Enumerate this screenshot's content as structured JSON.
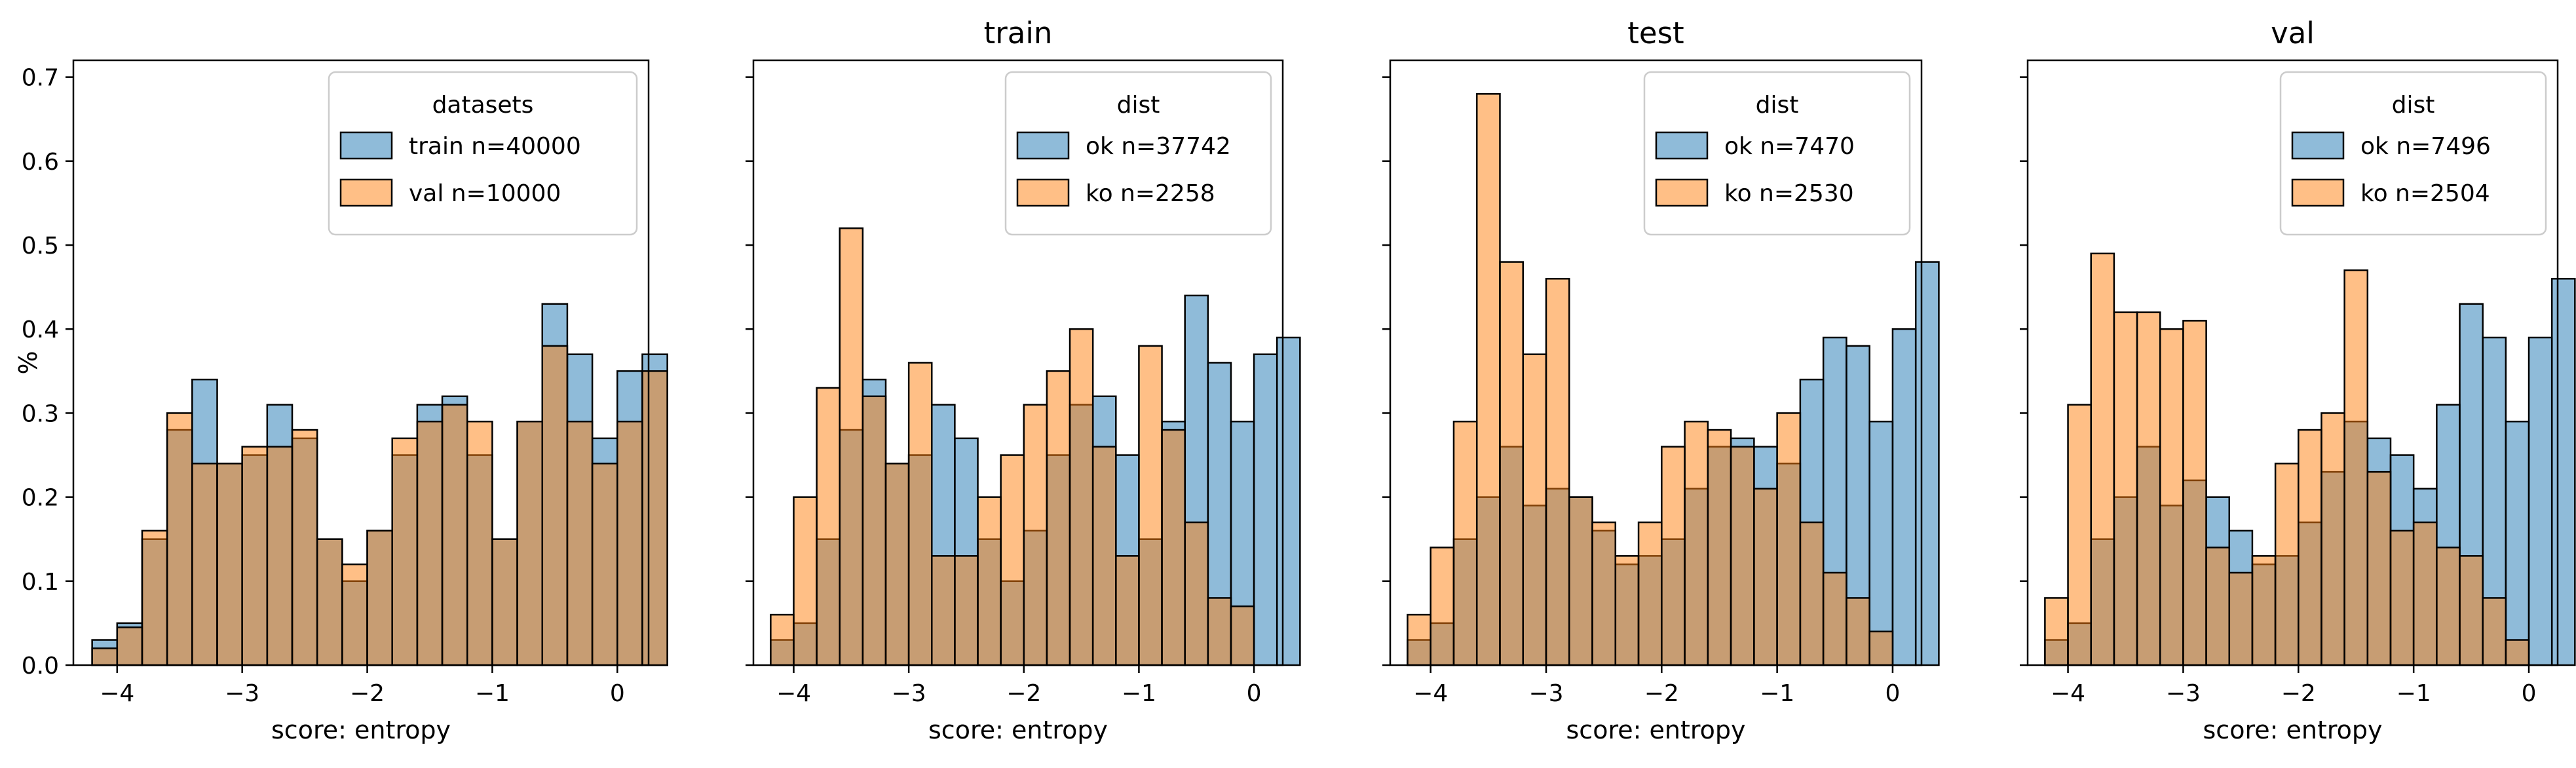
{
  "figure": {
    "ylabel": "%",
    "colors": {
      "blue": "#1f77b4",
      "orange": "#ff7f0e"
    }
  },
  "chart_data": [
    {
      "type": "histogram",
      "title": "",
      "xlabel": "score: entropy",
      "ylabel": "%",
      "xlim": [
        -4.35,
        0.25
      ],
      "ylim": [
        0,
        0.72
      ],
      "xticks": [
        "−4",
        "−3",
        "−2",
        "−1",
        "0"
      ],
      "yticks": [
        "0.0",
        "0.1",
        "0.2",
        "0.3",
        "0.4",
        "0.5",
        "0.6",
        "0.7"
      ],
      "legend": {
        "title": "datasets",
        "placement": "top-right"
      },
      "series": [
        {
          "name": "train n=40000",
          "color": "blue",
          "bin_start": -4.2,
          "bin_width": 0.2,
          "values": [
            0.03,
            0.05,
            0.15,
            0.28,
            0.34,
            0.24,
            0.25,
            0.31,
            0.27,
            0.15,
            0.1,
            0.16,
            0.25,
            0.31,
            0.32,
            0.25,
            0.15,
            0.29,
            0.43,
            0.37,
            0.27,
            0.35,
            0.37
          ]
        },
        {
          "name": "val n=10000",
          "color": "orange",
          "bin_start": -4.2,
          "bin_width": 0.2,
          "values": [
            0.02,
            0.045,
            0.16,
            0.3,
            0.24,
            0.24,
            0.26,
            0.26,
            0.28,
            0.15,
            0.12,
            0.16,
            0.27,
            0.29,
            0.31,
            0.29,
            0.15,
            0.29,
            0.38,
            0.29,
            0.24,
            0.29,
            0.35
          ]
        }
      ]
    },
    {
      "type": "histogram",
      "title": "train",
      "xlabel": "score: entropy",
      "xlim": [
        -4.35,
        0.25
      ],
      "ylim": [
        0,
        0.72
      ],
      "xticks": [
        "−4",
        "−3",
        "−2",
        "−1",
        "0"
      ],
      "legend": {
        "title": "dist",
        "placement": "top-right"
      },
      "series": [
        {
          "name": "ok n=37742",
          "color": "blue",
          "bin_start": -4.2,
          "bin_width": 0.2,
          "values": [
            0.03,
            0.05,
            0.15,
            0.28,
            0.34,
            0.24,
            0.25,
            0.31,
            0.27,
            0.15,
            0.1,
            0.16,
            0.25,
            0.31,
            0.32,
            0.25,
            0.15,
            0.29,
            0.44,
            0.36,
            0.29,
            0.37,
            0.39
          ]
        },
        {
          "name": "ko n=2258",
          "color": "orange",
          "bin_start": -4.2,
          "bin_width": 0.2,
          "values": [
            0.06,
            0.2,
            0.33,
            0.52,
            0.32,
            0.24,
            0.36,
            0.13,
            0.13,
            0.2,
            0.25,
            0.31,
            0.35,
            0.4,
            0.26,
            0.13,
            0.38,
            0.28,
            0.17,
            0.08,
            0.07
          ]
        }
      ]
    },
    {
      "type": "histogram",
      "title": "test",
      "xlabel": "score: entropy",
      "xlim": [
        -4.35,
        0.25
      ],
      "ylim": [
        0,
        0.72
      ],
      "xticks": [
        "−4",
        "−3",
        "−2",
        "−1",
        "0"
      ],
      "legend": {
        "title": "dist",
        "placement": "top-right"
      },
      "series": [
        {
          "name": "ok n=7470",
          "color": "blue",
          "bin_start": -4.2,
          "bin_width": 0.2,
          "values": [
            0.03,
            0.05,
            0.15,
            0.2,
            0.26,
            0.19,
            0.21,
            0.2,
            0.16,
            0.12,
            0.13,
            0.15,
            0.21,
            0.26,
            0.27,
            0.26,
            0.24,
            0.34,
            0.39,
            0.38,
            0.29,
            0.4,
            0.48
          ]
        },
        {
          "name": "ko n=2530",
          "color": "orange",
          "bin_start": -4.2,
          "bin_width": 0.2,
          "values": [
            0.06,
            0.14,
            0.29,
            0.68,
            0.48,
            0.37,
            0.46,
            0.2,
            0.17,
            0.13,
            0.17,
            0.26,
            0.29,
            0.28,
            0.26,
            0.21,
            0.3,
            0.17,
            0.11,
            0.08,
            0.04
          ]
        }
      ]
    },
    {
      "type": "histogram",
      "title": "val",
      "xlabel": "score: entropy",
      "xlim": [
        -4.35,
        0.25
      ],
      "ylim": [
        0,
        0.72
      ],
      "xticks": [
        "−4",
        "−3",
        "−2",
        "−1",
        "0"
      ],
      "legend": {
        "title": "dist",
        "placement": "top-right"
      },
      "series": [
        {
          "name": "ok n=7496",
          "color": "blue",
          "bin_start": -4.2,
          "bin_width": 0.2,
          "values": [
            0.03,
            0.05,
            0.15,
            0.2,
            0.26,
            0.19,
            0.22,
            0.2,
            0.16,
            0.12,
            0.13,
            0.17,
            0.23,
            0.29,
            0.27,
            0.25,
            0.21,
            0.31,
            0.43,
            0.39,
            0.29,
            0.39,
            0.46
          ]
        },
        {
          "name": "ko n=2504",
          "color": "orange",
          "bin_start": -4.2,
          "bin_width": 0.2,
          "values": [
            0.08,
            0.31,
            0.49,
            0.42,
            0.42,
            0.4,
            0.41,
            0.14,
            0.11,
            0.13,
            0.24,
            0.28,
            0.3,
            0.47,
            0.23,
            0.16,
            0.17,
            0.14,
            0.13,
            0.08,
            0.03
          ]
        }
      ]
    }
  ]
}
